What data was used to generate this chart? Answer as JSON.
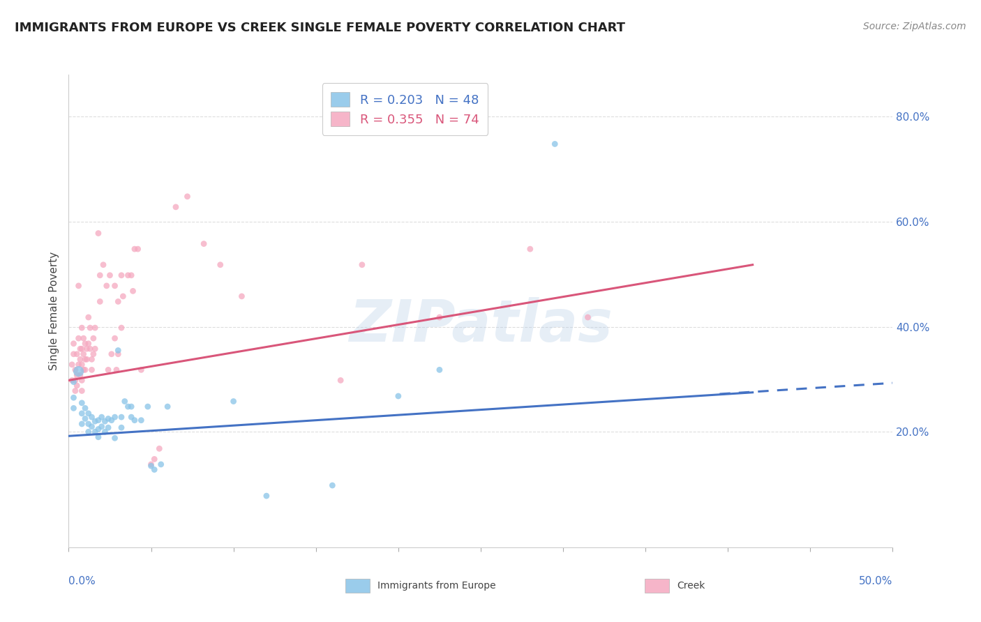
{
  "title": "IMMIGRANTS FROM EUROPE VS CREEK SINGLE FEMALE POVERTY CORRELATION CHART",
  "source": "Source: ZipAtlas.com",
  "ylabel": "Single Female Poverty",
  "right_yticks": [
    "20.0%",
    "40.0%",
    "60.0%",
    "80.0%"
  ],
  "right_ytick_vals": [
    0.2,
    0.4,
    0.6,
    0.8
  ],
  "xlim": [
    0.0,
    0.5
  ],
  "ylim": [
    -0.02,
    0.88
  ],
  "legend_blue_r": "R = 0.203",
  "legend_blue_n": "N = 48",
  "legend_pink_r": "R = 0.355",
  "legend_pink_n": "N = 74",
  "watermark": "ZIPatlas",
  "blue_color": "#89c4e8",
  "pink_color": "#f5a8c0",
  "blue_line_color": "#4472c4",
  "pink_line_color": "#d9567a",
  "blue_scatter": [
    [
      0.003,
      0.295
    ],
    [
      0.003,
      0.265
    ],
    [
      0.003,
      0.245
    ],
    [
      0.006,
      0.315
    ],
    [
      0.008,
      0.255
    ],
    [
      0.008,
      0.235
    ],
    [
      0.008,
      0.215
    ],
    [
      0.01,
      0.245
    ],
    [
      0.01,
      0.225
    ],
    [
      0.012,
      0.235
    ],
    [
      0.012,
      0.215
    ],
    [
      0.012,
      0.2
    ],
    [
      0.014,
      0.228
    ],
    [
      0.014,
      0.21
    ],
    [
      0.016,
      0.22
    ],
    [
      0.016,
      0.2
    ],
    [
      0.018,
      0.222
    ],
    [
      0.018,
      0.205
    ],
    [
      0.018,
      0.19
    ],
    [
      0.02,
      0.228
    ],
    [
      0.02,
      0.21
    ],
    [
      0.022,
      0.22
    ],
    [
      0.022,
      0.2
    ],
    [
      0.024,
      0.225
    ],
    [
      0.024,
      0.208
    ],
    [
      0.026,
      0.222
    ],
    [
      0.028,
      0.228
    ],
    [
      0.028,
      0.188
    ],
    [
      0.03,
      0.355
    ],
    [
      0.032,
      0.228
    ],
    [
      0.032,
      0.208
    ],
    [
      0.034,
      0.258
    ],
    [
      0.036,
      0.248
    ],
    [
      0.038,
      0.228
    ],
    [
      0.038,
      0.248
    ],
    [
      0.04,
      0.222
    ],
    [
      0.044,
      0.222
    ],
    [
      0.048,
      0.248
    ],
    [
      0.05,
      0.135
    ],
    [
      0.052,
      0.128
    ],
    [
      0.056,
      0.138
    ],
    [
      0.06,
      0.248
    ],
    [
      0.1,
      0.258
    ],
    [
      0.12,
      0.078
    ],
    [
      0.16,
      0.098
    ],
    [
      0.2,
      0.268
    ],
    [
      0.225,
      0.318
    ],
    [
      0.295,
      0.748
    ]
  ],
  "blue_sizes": [
    40,
    40,
    40,
    120,
    40,
    40,
    40,
    40,
    40,
    40,
    40,
    40,
    40,
    40,
    40,
    40,
    40,
    40,
    40,
    40,
    40,
    40,
    40,
    40,
    40,
    40,
    40,
    40,
    40,
    40,
    40,
    40,
    40,
    40,
    40,
    40,
    40,
    40,
    40,
    40,
    40,
    40,
    40,
    40,
    40,
    40,
    40,
    40
  ],
  "pink_scatter": [
    [
      0.002,
      0.298
    ],
    [
      0.002,
      0.328
    ],
    [
      0.003,
      0.348
    ],
    [
      0.003,
      0.368
    ],
    [
      0.004,
      0.298
    ],
    [
      0.004,
      0.318
    ],
    [
      0.004,
      0.278
    ],
    [
      0.005,
      0.348
    ],
    [
      0.005,
      0.308
    ],
    [
      0.005,
      0.288
    ],
    [
      0.006,
      0.478
    ],
    [
      0.006,
      0.378
    ],
    [
      0.006,
      0.328
    ],
    [
      0.007,
      0.358
    ],
    [
      0.007,
      0.338
    ],
    [
      0.007,
      0.308
    ],
    [
      0.008,
      0.398
    ],
    [
      0.008,
      0.358
    ],
    [
      0.008,
      0.328
    ],
    [
      0.008,
      0.298
    ],
    [
      0.008,
      0.278
    ],
    [
      0.009,
      0.378
    ],
    [
      0.009,
      0.348
    ],
    [
      0.009,
      0.318
    ],
    [
      0.01,
      0.368
    ],
    [
      0.01,
      0.338
    ],
    [
      0.01,
      0.318
    ],
    [
      0.011,
      0.358
    ],
    [
      0.011,
      0.338
    ],
    [
      0.012,
      0.418
    ],
    [
      0.012,
      0.368
    ],
    [
      0.013,
      0.398
    ],
    [
      0.013,
      0.358
    ],
    [
      0.014,
      0.338
    ],
    [
      0.014,
      0.318
    ],
    [
      0.015,
      0.378
    ],
    [
      0.015,
      0.348
    ],
    [
      0.016,
      0.398
    ],
    [
      0.016,
      0.358
    ],
    [
      0.018,
      0.578
    ],
    [
      0.019,
      0.498
    ],
    [
      0.019,
      0.448
    ],
    [
      0.021,
      0.518
    ],
    [
      0.023,
      0.478
    ],
    [
      0.024,
      0.318
    ],
    [
      0.025,
      0.498
    ],
    [
      0.026,
      0.348
    ],
    [
      0.028,
      0.478
    ],
    [
      0.028,
      0.378
    ],
    [
      0.029,
      0.318
    ],
    [
      0.03,
      0.448
    ],
    [
      0.03,
      0.348
    ],
    [
      0.032,
      0.498
    ],
    [
      0.032,
      0.398
    ],
    [
      0.033,
      0.458
    ],
    [
      0.036,
      0.498
    ],
    [
      0.038,
      0.498
    ],
    [
      0.039,
      0.468
    ],
    [
      0.04,
      0.548
    ],
    [
      0.042,
      0.548
    ],
    [
      0.044,
      0.318
    ],
    [
      0.05,
      0.138
    ],
    [
      0.052,
      0.148
    ],
    [
      0.055,
      0.168
    ],
    [
      0.065,
      0.628
    ],
    [
      0.072,
      0.648
    ],
    [
      0.082,
      0.558
    ],
    [
      0.092,
      0.518
    ],
    [
      0.105,
      0.458
    ],
    [
      0.165,
      0.298
    ],
    [
      0.178,
      0.518
    ],
    [
      0.225,
      0.418
    ],
    [
      0.28,
      0.548
    ],
    [
      0.315,
      0.418
    ]
  ],
  "pink_sizes": [
    40,
    40,
    40,
    40,
    40,
    40,
    40,
    40,
    40,
    40,
    40,
    40,
    40,
    40,
    40,
    40,
    40,
    40,
    40,
    40,
    40,
    40,
    40,
    40,
    40,
    40,
    40,
    40,
    40,
    40,
    40,
    40,
    40,
    40,
    40,
    40,
    40,
    40,
    40,
    40,
    40,
    40,
    40,
    40,
    40,
    40,
    40,
    40,
    40,
    40,
    40,
    40,
    40,
    40,
    40,
    40,
    40,
    40,
    40,
    40,
    40,
    40,
    40,
    40,
    40,
    40,
    40,
    40,
    40,
    40,
    40,
    40,
    40,
    40
  ],
  "blue_line": {
    "x0": 0.0,
    "y0": 0.192,
    "x1": 0.415,
    "y1": 0.275
  },
  "blue_dash_line": {
    "x0": 0.395,
    "y0": 0.272,
    "x1": 0.5,
    "y1": 0.293
  },
  "pink_line": {
    "x0": 0.0,
    "y0": 0.298,
    "x1": 0.415,
    "y1": 0.518
  },
  "grid_color": "#dddddd",
  "background_color": "#ffffff",
  "title_fontsize": 13,
  "axis_label_fontsize": 11,
  "tick_fontsize": 11,
  "legend_fontsize": 13,
  "source_fontsize": 10,
  "watermark_fontsize": 60,
  "watermark_color": "#b8cfe8",
  "watermark_alpha": 0.35
}
